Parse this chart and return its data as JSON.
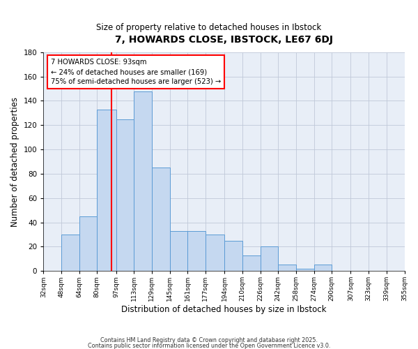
{
  "title": "7, HOWARDS CLOSE, IBSTOCK, LE67 6DJ",
  "subtitle": "Size of property relative to detached houses in Ibstock",
  "xlabel": "Distribution of detached houses by size in Ibstock",
  "ylabel": "Number of detached properties",
  "bar_color": "#c5d8f0",
  "bar_edge_color": "#5b9bd5",
  "background_color": "#e8eef7",
  "grid_color": "#c0c8d8",
  "bins": [
    32,
    48,
    64,
    80,
    97,
    113,
    129,
    145,
    161,
    177,
    194,
    210,
    226,
    242,
    258,
    274,
    290,
    307,
    323,
    339,
    355
  ],
  "bin_labels": [
    "32sqm",
    "48sqm",
    "64sqm",
    "80sqm",
    "97sqm",
    "113sqm",
    "129sqm",
    "145sqm",
    "161sqm",
    "177sqm",
    "194sqm",
    "210sqm",
    "226sqm",
    "242sqm",
    "258sqm",
    "274sqm",
    "290sqm",
    "307sqm",
    "323sqm",
    "339sqm",
    "355sqm"
  ],
  "counts": [
    0,
    30,
    45,
    133,
    125,
    148,
    85,
    33,
    33,
    30,
    25,
    13,
    20,
    5,
    2,
    5,
    0,
    0,
    0,
    0,
    1
  ],
  "vline_x": 93,
  "vline_color": "red",
  "annotation_line1": "7 HOWARDS CLOSE: 93sqm",
  "annotation_line2": "← 24% of detached houses are smaller (169)",
  "annotation_line3": "75% of semi-detached houses are larger (523) →",
  "ylim": [
    0,
    180
  ],
  "yticks": [
    0,
    20,
    40,
    60,
    80,
    100,
    120,
    140,
    160,
    180
  ],
  "footer1": "Contains HM Land Registry data © Crown copyright and database right 2025.",
  "footer2": "Contains public sector information licensed under the Open Government Licence v3.0."
}
